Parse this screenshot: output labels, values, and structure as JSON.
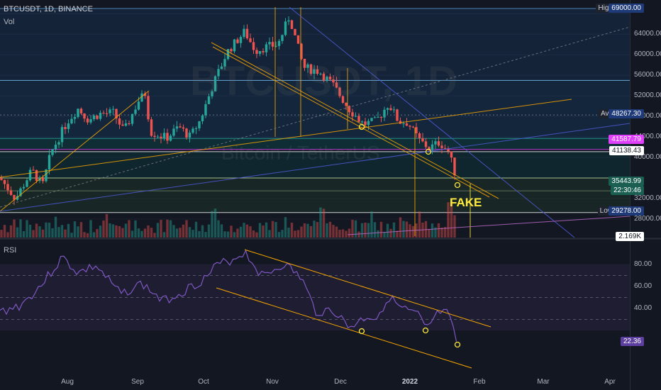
{
  "header": {
    "symbol_line": "BTCUSDT, 1D, BINANCE",
    "vol_label": "Vol"
  },
  "watermark": {
    "ticker": "BTCUSDT, 1D",
    "name": "Bitcoin / TetherUS"
  },
  "annotations": {
    "fake": "FAKE"
  },
  "rsi_panel": {
    "label": "RSI"
  },
  "price_scale": {
    "ticks": [
      "64000.00",
      "60000.00",
      "56000.00",
      "52000.00",
      "48000.00",
      "44000.00",
      "40000.00",
      "36000.00",
      "32000.00",
      "28000.00"
    ],
    "tags": {
      "high_label": "High",
      "high_value": "69000.00",
      "avg_label": "Avg",
      "avg_value": "48267.30",
      "magenta_value": "41587.79",
      "white_value": "41138.43",
      "last_value": "35443.99",
      "countdown": "22:30:46",
      "low_label": "Low",
      "low_value": "29278.00",
      "vol_value": "2.169K"
    }
  },
  "rsi_scale": {
    "ticks": [
      "80.00",
      "60.00",
      "40.00"
    ],
    "current": "22.36"
  },
  "time_axis": {
    "labels": [
      "Aug",
      "Sep",
      "Oct",
      "Nov",
      "Dec",
      "2022",
      "Feb",
      "Mar",
      "Apr"
    ]
  },
  "colors": {
    "up": "#26a69a",
    "down": "#ef5350",
    "rsi": "#7e57c2",
    "trend": "#f7a600",
    "blue": "#4e5bd8",
    "magenta": "#e040fb"
  },
  "chart_data": [
    {
      "type": "candlestick",
      "title": "BTCUSDT, 1D, BINANCE",
      "ylim": [
        27000,
        69500
      ],
      "date_range": [
        "2021-07-01",
        "2022-01-21"
      ],
      "high": 69000.0,
      "low": 29278.0,
      "avg": 48267.3,
      "last": 35443.99,
      "levels": [
        69000,
        55000,
        48267.3,
        41587.79,
        41138.43,
        36000,
        29278
      ],
      "monthly_closes": {
        "categories": [
          "Jul",
          "Aug",
          "Sep",
          "Oct",
          "Nov",
          "Dec",
          "2022 Jan"
        ],
        "values": [
          41500,
          47100,
          43800,
          61300,
          57000,
          46300,
          35444
        ]
      },
      "annotations": [
        "FAKE"
      ]
    },
    {
      "type": "line",
      "title": "RSI",
      "ylim": [
        0,
        100
      ],
      "levels": [
        70,
        50,
        30
      ],
      "current": 22.36
    }
  ]
}
